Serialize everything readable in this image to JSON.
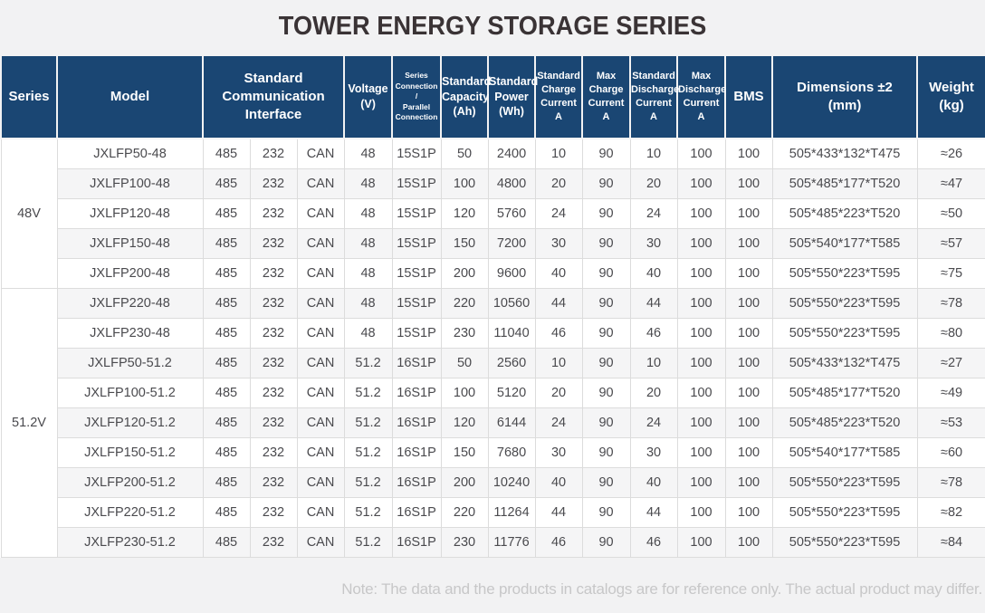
{
  "page": {
    "title": "TOWER ENERGY STORAGE SERIES",
    "note": "Note: The data and the products in catalogs are for reference only. The actual product may differ."
  },
  "colors": {
    "header_bg": "#1a4673",
    "header_text": "#ffffff",
    "page_bg": "#f2f2f3",
    "row_bg": "#ffffff",
    "row_alt_bg": "#f5f5f6",
    "grid_line": "#dcdcdc",
    "body_text": "#4a4a4e",
    "title_text": "#3a3335",
    "note_text": "#c7c7c8"
  },
  "table": {
    "headers": {
      "series": "Series",
      "model": "Model",
      "comm_interface": "Standard\nCommunication\nInterface",
      "voltage": "Voltage\n(V)",
      "connection": "Series\nConnection\n/\nParallel\nConnection",
      "capacity": "Standard\nCapacity\n(Ah)",
      "power": "Standard\nPower\n(Wh)",
      "standard_charge": "Standard\nCharge\nCurrent\nA",
      "max_charge": "Max\nCharge\nCurrent\nA",
      "standard_discharge": "Standard\nDischarge\nCurrent\nA",
      "max_discharge": "Max\nDischarge\nCurrent\nA",
      "bms": "BMS",
      "dimensions": "Dimensions ±2\n(mm)",
      "weight": "Weight\n(kg)"
    },
    "groups": [
      {
        "series": "48V",
        "rows": [
          [
            "JXLFP50-48",
            "485",
            "232",
            "CAN",
            "48",
            "15S1P",
            "50",
            "2400",
            "10",
            "90",
            "10",
            "100",
            "100",
            "505*433*132*T475",
            "≈26"
          ],
          [
            "JXLFP100-48",
            "485",
            "232",
            "CAN",
            "48",
            "15S1P",
            "100",
            "4800",
            "20",
            "90",
            "20",
            "100",
            "100",
            "505*485*177*T520",
            "≈47"
          ],
          [
            "JXLFP120-48",
            "485",
            "232",
            "CAN",
            "48",
            "15S1P",
            "120",
            "5760",
            "24",
            "90",
            "24",
            "100",
            "100",
            "505*485*223*T520",
            "≈50"
          ],
          [
            "JXLFP150-48",
            "485",
            "232",
            "CAN",
            "48",
            "15S1P",
            "150",
            "7200",
            "30",
            "90",
            "30",
            "100",
            "100",
            "505*540*177*T585",
            "≈57"
          ],
          [
            "JXLFP200-48",
            "485",
            "232",
            "CAN",
            "48",
            "15S1P",
            "200",
            "9600",
            "40",
            "90",
            "40",
            "100",
            "100",
            "505*550*223*T595",
            "≈75"
          ]
        ]
      },
      {
        "series": "51.2V",
        "rows": [
          [
            "JXLFP220-48",
            "485",
            "232",
            "CAN",
            "48",
            "15S1P",
            "220",
            "10560",
            "44",
            "90",
            "44",
            "100",
            "100",
            "505*550*223*T595",
            "≈78"
          ],
          [
            "JXLFP230-48",
            "485",
            "232",
            "CAN",
            "48",
            "15S1P",
            "230",
            "11040",
            "46",
            "90",
            "46",
            "100",
            "100",
            "505*550*223*T595",
            "≈80"
          ],
          [
            "JXLFP50-51.2",
            "485",
            "232",
            "CAN",
            "51.2",
            "16S1P",
            "50",
            "2560",
            "10",
            "90",
            "10",
            "100",
            "100",
            "505*433*132*T475",
            "≈27"
          ],
          [
            "JXLFP100-51.2",
            "485",
            "232",
            "CAN",
            "51.2",
            "16S1P",
            "100",
            "5120",
            "20",
            "90",
            "20",
            "100",
            "100",
            "505*485*177*T520",
            "≈49"
          ],
          [
            "JXLFP120-51.2",
            "485",
            "232",
            "CAN",
            "51.2",
            "16S1P",
            "120",
            "6144",
            "24",
            "90",
            "24",
            "100",
            "100",
            "505*485*223*T520",
            "≈53"
          ],
          [
            "JXLFP150-51.2",
            "485",
            "232",
            "CAN",
            "51.2",
            "16S1P",
            "150",
            "7680",
            "30",
            "90",
            "30",
            "100",
            "100",
            "505*540*177*T585",
            "≈60"
          ],
          [
            "JXLFP200-51.2",
            "485",
            "232",
            "CAN",
            "51.2",
            "16S1P",
            "200",
            "10240",
            "40",
            "90",
            "40",
            "100",
            "100",
            "505*550*223*T595",
            "≈78"
          ],
          [
            "JXLFP220-51.2",
            "485",
            "232",
            "CAN",
            "51.2",
            "16S1P",
            "220",
            "11264",
            "44",
            "90",
            "44",
            "100",
            "100",
            "505*550*223*T595",
            "≈82"
          ],
          [
            "JXLFP230-51.2",
            "485",
            "232",
            "CAN",
            "51.2",
            "16S1P",
            "230",
            "11776",
            "46",
            "90",
            "46",
            "100",
            "100",
            "505*550*223*T595",
            "≈84"
          ]
        ]
      }
    ]
  }
}
